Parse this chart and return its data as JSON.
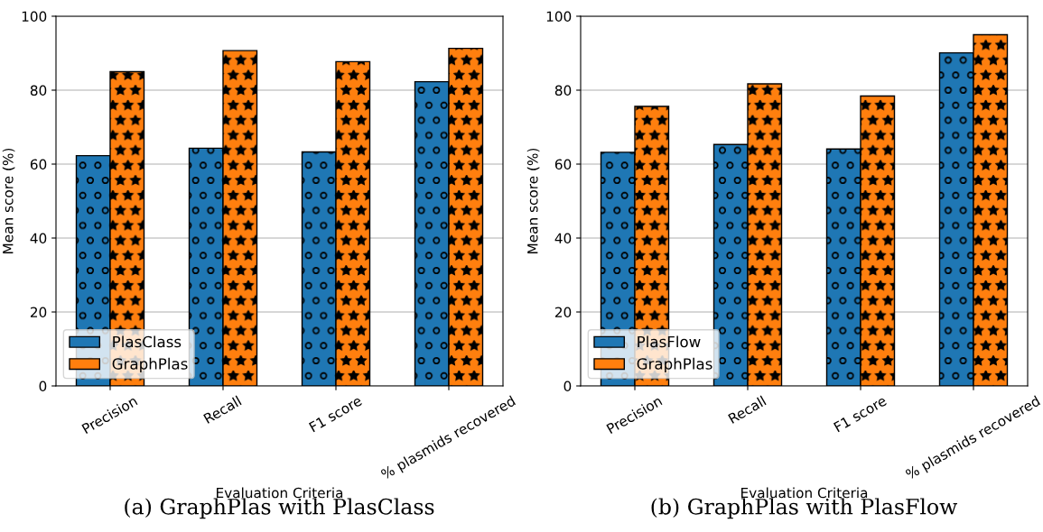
{
  "chart_data": [
    {
      "type": "bar",
      "xlabel": "Evaluation Criteria",
      "ylabel": "Mean score (%)",
      "categories": [
        "Precision",
        "Recall",
        "F1 score",
        "% plasmids recovered"
      ],
      "series": [
        {
          "name": "PlasClass",
          "color": "#1f77b4",
          "values": [
            62.3,
            64.3,
            63.3,
            82.3
          ]
        },
        {
          "name": "GraphPlas",
          "color": "#ff7f0e",
          "values": [
            85.0,
            90.7,
            87.7,
            91.3
          ]
        }
      ],
      "ylim": [
        0,
        100
      ],
      "yticks": [
        0,
        20,
        40,
        60,
        80,
        100
      ],
      "grid": "y",
      "legend": "bottom left",
      "annotations": [
        "(a) GraphPlas with PlasClass"
      ]
    },
    {
      "type": "bar",
      "xlabel": "Evaluation Criteria",
      "ylabel": "Mean score (%)",
      "categories": [
        "Precision",
        "Recall",
        "F1 score",
        "% plasmids recovered"
      ],
      "series": [
        {
          "name": "PlasFlow",
          "color": "#1f77b4",
          "values": [
            63.2,
            65.3,
            64.1,
            90.1
          ]
        },
        {
          "name": "GraphPlas",
          "color": "#ff7f0e",
          "values": [
            75.6,
            81.7,
            78.4,
            95.0
          ]
        }
      ],
      "ylim": [
        0,
        100
      ],
      "yticks": [
        0,
        20,
        40,
        60,
        80,
        100
      ],
      "grid": "y",
      "legend": "bottom left",
      "annotations": [
        "(b) GraphPlas with PlasFlow"
      ]
    }
  ]
}
